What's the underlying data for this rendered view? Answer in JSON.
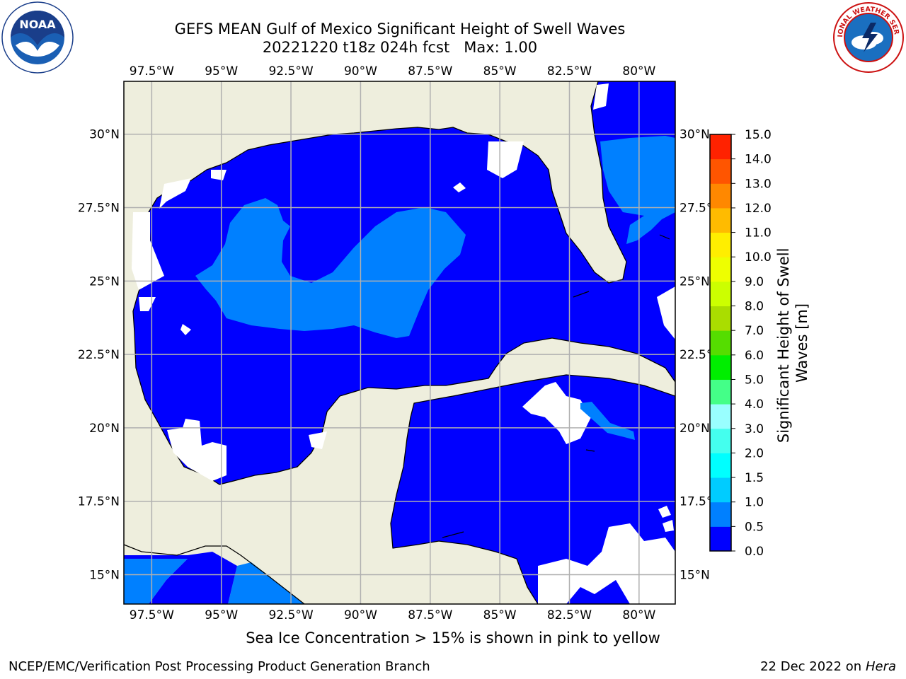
{
  "title": {
    "line1": "GEFS MEAN Gulf of Mexico Significant Height of Swell Waves",
    "line2": "20221220 t18z 024h fcst   Max: 1.00"
  },
  "logos": {
    "left": {
      "icon": "noaa-logo",
      "text": "NOAA"
    },
    "right": {
      "icon": "national-weather-service-logo",
      "text": "NATIONAL WEATHER SERVICE"
    }
  },
  "map": {
    "lon_range": [
      -98.5,
      -78.7
    ],
    "lat_range": [
      14.0,
      31.8
    ],
    "lon_ticks": [
      {
        "value": -97.5,
        "label": "97.5°W"
      },
      {
        "value": -95.0,
        "label": "95°W"
      },
      {
        "value": -92.5,
        "label": "92.5°W"
      },
      {
        "value": -90.0,
        "label": "90°W"
      },
      {
        "value": -87.5,
        "label": "87.5°W"
      },
      {
        "value": -85.0,
        "label": "85°W"
      },
      {
        "value": -82.5,
        "label": "82.5°W"
      },
      {
        "value": -80.0,
        "label": "80°W"
      }
    ],
    "lat_ticks": [
      {
        "value": 15.0,
        "label": "15°N"
      },
      {
        "value": 17.5,
        "label": "17.5°N"
      },
      {
        "value": 20.0,
        "label": "20°N"
      },
      {
        "value": 22.5,
        "label": "22.5°N"
      },
      {
        "value": 25.0,
        "label": "25°N"
      },
      {
        "value": 27.5,
        "label": "27.5°N"
      },
      {
        "value": 30.0,
        "label": "30°N"
      }
    ],
    "colors": {
      "land": "#eeeedd",
      "grid": "#b0b0b0",
      "no_data": "#ffffff"
    }
  },
  "colorbar": {
    "label": "Significant Height of Swell Waves [m]",
    "bounds": [
      0.0,
      0.5,
      1.0,
      1.5,
      2.0,
      3.0,
      4.0,
      5.0,
      6.0,
      7.0,
      8.0,
      9.0,
      10.0,
      11.0,
      12.0,
      13.0,
      14.0,
      15.0
    ],
    "tick_labels": [
      "0.0",
      "0.5",
      "1.0",
      "1.5",
      "2.0",
      "3.0",
      "4.0",
      "5.0",
      "6.0",
      "7.0",
      "8.0",
      "9.0",
      "10.0",
      "11.0",
      "12.0",
      "13.0",
      "14.0",
      "15.0"
    ],
    "colors": [
      "#0000ff",
      "#0080ff",
      "#00ccff",
      "#00ffff",
      "#44ffee",
      "#99ffff",
      "#44ff88",
      "#00ee00",
      "#55dd00",
      "#aadd00",
      "#ccff00",
      "#eeff00",
      "#ffee00",
      "#ffbb00",
      "#ff8800",
      "#ff5500",
      "#ff2200"
    ]
  },
  "footer": {
    "caption": "Sea Ice Concentration > 15% is shown in pink to yellow",
    "credit_left": "NCEP/EMC/Verification Post Processing Product Generation Branch",
    "date": "22 Dec 2022 on",
    "host": "Hera"
  }
}
